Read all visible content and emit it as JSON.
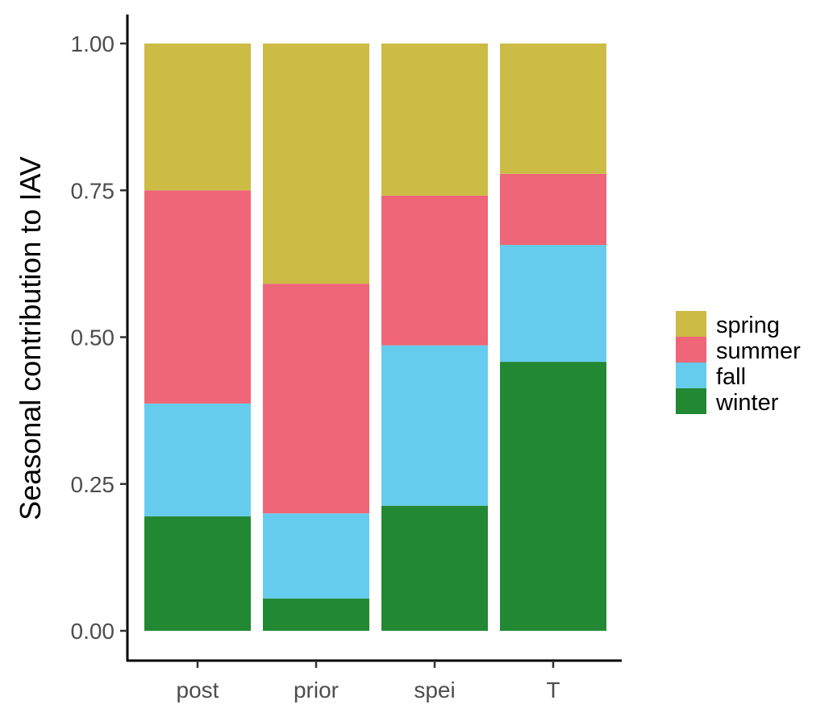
{
  "chart_data": {
    "type": "bar",
    "stacked": true,
    "categories": [
      "post",
      "prior",
      "spei",
      "T"
    ],
    "series": [
      {
        "name": "winter",
        "color": "#228833",
        "values": [
          0.195,
          0.055,
          0.213,
          0.458
        ]
      },
      {
        "name": "fall",
        "color": "#66CCEE",
        "values": [
          0.192,
          0.145,
          0.273,
          0.199
        ]
      },
      {
        "name": "summer",
        "color": "#EE6677",
        "values": [
          0.363,
          0.391,
          0.255,
          0.121
        ]
      },
      {
        "name": "spring",
        "color": "#CCBB44",
        "values": [
          0.25,
          0.409,
          0.259,
          0.222
        ]
      }
    ],
    "title": "",
    "xlabel": "",
    "ylabel": "Seasonal contribution to IAV",
    "ylim": [
      0,
      1
    ],
    "yticks": [
      "0.00",
      "0.25",
      "0.50",
      "0.75",
      "1.00"
    ],
    "ytick_values": [
      0,
      0.25,
      0.5,
      0.75,
      1.0
    ],
    "legend": {
      "position": "right",
      "entries": [
        "spring",
        "summer",
        "fall",
        "winter"
      ]
    },
    "grid": false
  }
}
